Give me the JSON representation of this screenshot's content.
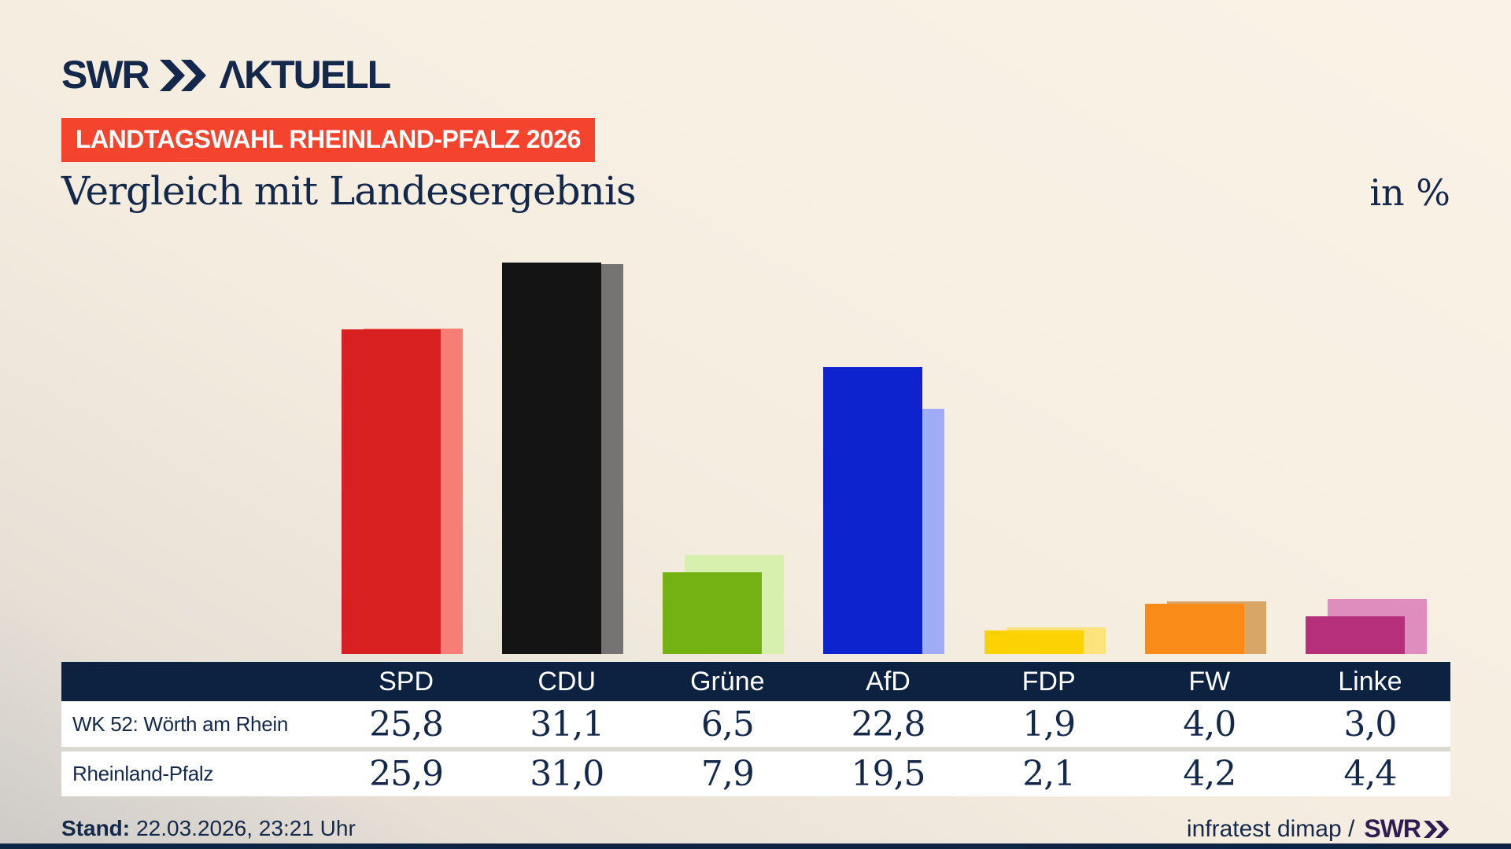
{
  "brand": {
    "logo_main": "SWR",
    "logo_secondary": "ΛKTUELL"
  },
  "header": {
    "badge": "LANDTAGSWAHL RHEINLAND-PFALZ 2026",
    "title": "Vergleich mit Landesergebnis",
    "unit_label": "in %"
  },
  "chart_data": {
    "type": "bar",
    "categories": [
      "SPD",
      "CDU",
      "Grüne",
      "AfD",
      "FDP",
      "FW",
      "Linke"
    ],
    "series": [
      {
        "name": "WK 52: Wörth am Rhein",
        "values": [
          25.8,
          31.1,
          6.5,
          22.8,
          1.9,
          4.0,
          3.0
        ]
      },
      {
        "name": "Rheinland-Pfalz",
        "values": [
          25.9,
          31.0,
          7.9,
          19.5,
          2.1,
          4.2,
          4.4
        ]
      }
    ],
    "unit": "in %",
    "ylim": [
      0,
      35
    ],
    "grid": false,
    "legend_position": "table-rows",
    "value_format": "decimal-comma",
    "colors": [
      {
        "party": "SPD",
        "main": "#d92020",
        "muted": "#f87d75"
      },
      {
        "party": "CDU",
        "main": "#141414",
        "muted": "#757472"
      },
      {
        "party": "Grüne",
        "main": "#74b113",
        "muted": "#d7f0ae"
      },
      {
        "party": "AfD",
        "main": "#0c23cd",
        "muted": "#9fadf8"
      },
      {
        "party": "FDP",
        "main": "#fdd205",
        "muted": "#fce37c"
      },
      {
        "party": "FW",
        "main": "#f98c18",
        "muted": "#d8a667"
      },
      {
        "party": "Linke",
        "main": "#b62f7a",
        "muted": "#de8dbe"
      }
    ]
  },
  "footer": {
    "stand_label": "Stand:",
    "stand_value": "22.03.2026, 23:21 Uhr",
    "credit": "infratest dimap /",
    "credit_logo": "SWR"
  },
  "theme": {
    "navy_text": "#13284a",
    "table_header_bg": "#0d2240",
    "badge_bg": "#f4442e",
    "background_cream": "#f7efe2",
    "background_gray": "#cdcac7",
    "footer_logo_purple": "#2f1c52",
    "row_separator": "#dcd8d2"
  }
}
